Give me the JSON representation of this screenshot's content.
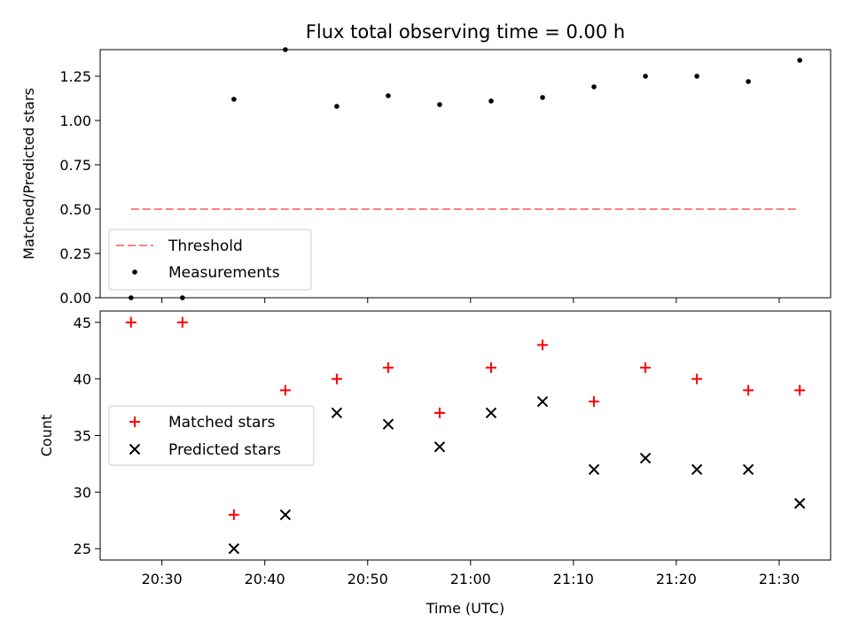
{
  "chart_data": [
    {
      "type": "scatter",
      "title": "Flux total observing time = 0.00 h",
      "xlabel": "",
      "ylabel": "Matched/Predicted stars",
      "ylim": [
        0,
        1.4
      ],
      "yticks": [
        "0.00",
        "0.25",
        "0.50",
        "0.75",
        "1.00",
        "1.25"
      ],
      "ytick_values": [
        0,
        0.25,
        0.5,
        0.75,
        1.0,
        1.25
      ],
      "legend_position": "lower-left",
      "threshold": {
        "name": "Threshold",
        "value": 0.5,
        "x_start": "20:27",
        "x_end": "21:32",
        "color": "#ff7f7f"
      },
      "series": [
        {
          "name": "Measurements",
          "color": "#000000",
          "marker": "dot",
          "x": [
            "20:27",
            "20:32",
            "20:37",
            "20:42",
            "20:47",
            "20:52",
            "20:57",
            "21:02",
            "21:07",
            "21:12",
            "21:17",
            "21:22",
            "21:27",
            "21:32"
          ],
          "y": [
            0.0,
            0.0,
            1.12,
            1.4,
            1.08,
            1.14,
            1.09,
            1.11,
            1.13,
            1.19,
            1.25,
            1.25,
            1.22,
            1.34
          ]
        }
      ]
    },
    {
      "type": "scatter",
      "title": "",
      "xlabel": "Time (UTC)",
      "ylabel": "Count",
      "ylim": [
        24,
        46
      ],
      "yticks": [
        "25",
        "30",
        "35",
        "40",
        "45"
      ],
      "ytick_values": [
        25,
        30,
        35,
        40,
        45
      ],
      "xticks": [
        "20:30",
        "20:40",
        "20:50",
        "21:00",
        "21:10",
        "21:20",
        "21:30"
      ],
      "xlim": [
        "20:24",
        "21:35"
      ],
      "legend_position": "center-left",
      "series": [
        {
          "name": "Matched stars",
          "color": "#ff0000",
          "marker": "plus",
          "x": [
            "20:27",
            "20:32",
            "20:37",
            "20:42",
            "20:47",
            "20:52",
            "20:57",
            "21:02",
            "21:07",
            "21:12",
            "21:17",
            "21:22",
            "21:27",
            "21:32"
          ],
          "y": [
            45,
            45,
            28,
            39,
            40,
            41,
            37,
            41,
            43,
            38,
            41,
            40,
            39,
            39
          ]
        },
        {
          "name": "Predicted stars",
          "color": "#000000",
          "marker": "x",
          "x": [
            "20:27",
            "20:32",
            "20:37",
            "20:42",
            "20:47",
            "20:52",
            "20:57",
            "21:02",
            "21:07",
            "21:12",
            "21:17",
            "21:22",
            "21:27",
            "21:32"
          ],
          "y": [
            null,
            null,
            25,
            28,
            37,
            36,
            34,
            37,
            38,
            32,
            33,
            32,
            32,
            29
          ]
        }
      ]
    }
  ]
}
